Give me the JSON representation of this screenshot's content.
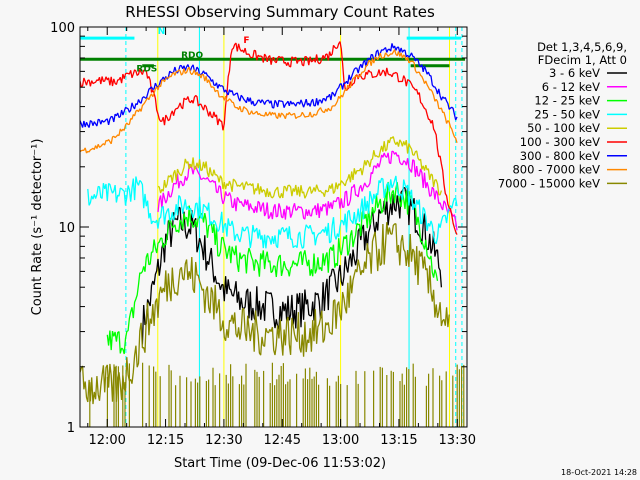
{
  "chart_data": {
    "type": "line",
    "title": "RHESSI Observing Summary Count Rates",
    "xlabel": "Start Time (09-Dec-06 11:53:02)",
    "ylabel": "Count Rate (s⁻¹ detector⁻¹)",
    "x_unit": "time of day (HH:MM)",
    "x_ticks": [
      "12:00",
      "12:15",
      "12:30",
      "12:45",
      "13:00",
      "13:15",
      "13:30"
    ],
    "x_tick_minutes": [
      720,
      735,
      750,
      765,
      780,
      795,
      810
    ],
    "xlim_minutes": [
      713.0,
      812.5
    ],
    "y_scale": "log",
    "ylim": [
      1,
      100
    ],
    "y_ticks": [
      "1",
      "10",
      "100"
    ],
    "y_tick_values": [
      1,
      10,
      100
    ],
    "legend_placement": "top-right, outside plot",
    "legend_header": [
      "Det 1,3,4,5,6,9,",
      "FDecim 1, Att 0"
    ],
    "timestamp": "18-Oct-2021 14:28",
    "series": [
      {
        "name": "3 - 6 keV",
        "color": "#000000",
        "x": [
          720,
          725,
          729,
          732,
          735,
          738,
          742,
          746,
          750,
          755,
          760,
          765,
          770,
          775,
          780,
          785,
          790,
          794,
          797,
          800,
          803,
          806
        ],
        "values": [
          null,
          null,
          3.2,
          5,
          8.5,
          10.5,
          10,
          7,
          4.8,
          4.2,
          4,
          3.8,
          3.9,
          4.3,
          5.5,
          8,
          11.5,
          13.5,
          13,
          11,
          8.5,
          6
        ]
      },
      {
        "name": "6 - 12 keV",
        "color": "#ff00ff",
        "x": [
          733,
          737,
          741,
          745,
          749,
          753,
          758,
          763,
          768,
          773,
          778,
          782,
          786,
          790,
          794,
          798,
          802,
          806,
          810
        ],
        "values": [
          12.5,
          16,
          19,
          17.5,
          14.5,
          13,
          12.5,
          12,
          12,
          12,
          12.5,
          14,
          16.5,
          20.5,
          23.5,
          21,
          16.5,
          13,
          10
        ]
      },
      {
        "name": "12 - 25 keV",
        "color": "#00ff00",
        "x": [
          720,
          725,
          729,
          733,
          737,
          741,
          745,
          749,
          753,
          758,
          763,
          768,
          773,
          778,
          782,
          786,
          790,
          794,
          798,
          802,
          805
        ],
        "values": [
          2.7,
          2.7,
          6.2,
          8,
          10.5,
          11.5,
          10.5,
          8,
          7,
          6.6,
          6.5,
          6.5,
          6.6,
          7,
          8.5,
          10.5,
          13,
          15.5,
          13,
          8.5,
          5
        ]
      },
      {
        "name": "25 - 50 keV",
        "color": "#00ffff",
        "x": [
          715,
          719,
          724,
          728,
          732,
          736,
          740,
          744,
          748,
          752,
          757,
          762,
          767,
          772,
          777,
          781,
          785,
          789,
          793,
          797,
          801,
          805,
          810
        ],
        "values": [
          14,
          14.5,
          14.5,
          16,
          11,
          12,
          13,
          12.5,
          11,
          9.5,
          9,
          9,
          9,
          9,
          9.5,
          10.5,
          12,
          14.5,
          17,
          15,
          11.5,
          9,
          14
        ]
      },
      {
        "name": "50 - 100 keV",
        "color": "#cccc00",
        "x": [
          733,
          737,
          741,
          745,
          749,
          753,
          758,
          763,
          768,
          773,
          778,
          782,
          786,
          790,
          794,
          798,
          802,
          806
        ],
        "values": [
          15,
          18,
          21,
          20,
          17,
          16,
          15.5,
          15,
          15,
          15,
          15.5,
          17.5,
          20,
          24,
          27,
          24.5,
          19,
          15
        ]
      },
      {
        "name": "100 - 300 keV",
        "color": "#ff0000",
        "x": [
          713,
          718,
          722,
          726,
          730,
          734,
          738,
          742,
          746,
          750,
          752,
          757,
          762,
          767,
          772,
          777,
          780,
          781,
          784,
          788,
          792,
          796,
          800,
          804,
          807,
          810
        ],
        "values": [
          53,
          54,
          53,
          58,
          60,
          33,
          40,
          44,
          38,
          32,
          82,
          73,
          68,
          67,
          67,
          72,
          88,
          48,
          57,
          58,
          60,
          55,
          46,
          32,
          15,
          9
        ]
      },
      {
        "name": "300 - 800 keV",
        "color": "#0000ff",
        "x": [
          713,
          717,
          721,
          725,
          729,
          733,
          737,
          741,
          745,
          749,
          753,
          758,
          763,
          768,
          773,
          778,
          782,
          786,
          790,
          794,
          798,
          802,
          806,
          810
        ],
        "values": [
          33,
          33,
          34,
          38,
          44,
          52,
          60,
          63,
          58,
          50,
          45,
          42,
          41,
          41,
          42,
          45,
          55,
          65,
          75,
          80,
          72,
          60,
          45,
          35
        ]
      },
      {
        "name": "800 - 7000 keV",
        "color": "#ff8800",
        "x": [
          713,
          717,
          721,
          725,
          729,
          733,
          737,
          741,
          745,
          749,
          753,
          758,
          763,
          768,
          773,
          778,
          782,
          786,
          790,
          794,
          798,
          802,
          806,
          810
        ],
        "values": [
          24,
          25,
          27,
          32,
          40,
          50,
          58,
          61,
          56,
          46,
          40,
          37,
          36,
          36,
          37,
          40,
          50,
          62,
          72,
          75,
          68,
          52,
          38,
          27
        ]
      },
      {
        "name": "7000 - 15000 keV",
        "color": "#888800",
        "x": [
          713,
          718,
          723,
          727,
          731,
          735,
          739,
          743,
          747,
          751,
          756,
          761,
          766,
          771,
          776,
          780,
          784,
          788,
          792,
          796,
          800,
          804,
          808
        ],
        "values": [
          1.6,
          1.6,
          1.6,
          2.2,
          3.5,
          5,
          6.2,
          5.5,
          4.2,
          3.3,
          3.0,
          2.9,
          2.9,
          2.9,
          3.1,
          3.9,
          5.3,
          7,
          8.6,
          8,
          6.5,
          4.5,
          3
        ]
      }
    ],
    "indicator_bars": [
      {
        "label": "",
        "color": "#00ffff",
        "segments": [
          [
            713,
            727
          ],
          [
            797,
            811
          ]
        ],
        "value": 88
      },
      {
        "label": "RDO",
        "color": "#008000",
        "segments": [
          [
            713,
            812
          ]
        ],
        "value": 69
      },
      {
        "label": "",
        "color": "#008000",
        "segments": [
          [
            729,
            732
          ],
          [
            798,
            808
          ]
        ],
        "value": 64
      }
    ],
    "annotations": [
      {
        "text": "N",
        "color": "#00ffff",
        "x": 733,
        "y": 92
      },
      {
        "text": "RDO",
        "color": "#008000",
        "x": 739,
        "y": 70
      },
      {
        "text": "RDS",
        "color": "#008000",
        "x": 727.5,
        "y": 60
      },
      {
        "text": "F",
        "color": "#ff0000",
        "x": 755,
        "y": 83
      }
    ],
    "vertical_markers": [
      {
        "x": 724.8,
        "color": "#00ffff",
        "style": "dashed"
      },
      {
        "x": 743.7,
        "color": "#00ffff",
        "style": "solid"
      },
      {
        "x": 797.6,
        "color": "#00ffff",
        "style": "solid"
      },
      {
        "x": 809.6,
        "color": "#00ffff",
        "style": "dashed"
      },
      {
        "x": 811.2,
        "color": "#00ffff",
        "style": "dashed"
      },
      {
        "x": 733,
        "color": "#ffff00",
        "style": "solid"
      },
      {
        "x": 750,
        "color": "#ffff00",
        "style": "solid"
      },
      {
        "x": 780,
        "color": "#ffff00",
        "style": "solid"
      },
      {
        "x": 808,
        "color": "#ffff00",
        "style": "solid"
      }
    ]
  }
}
